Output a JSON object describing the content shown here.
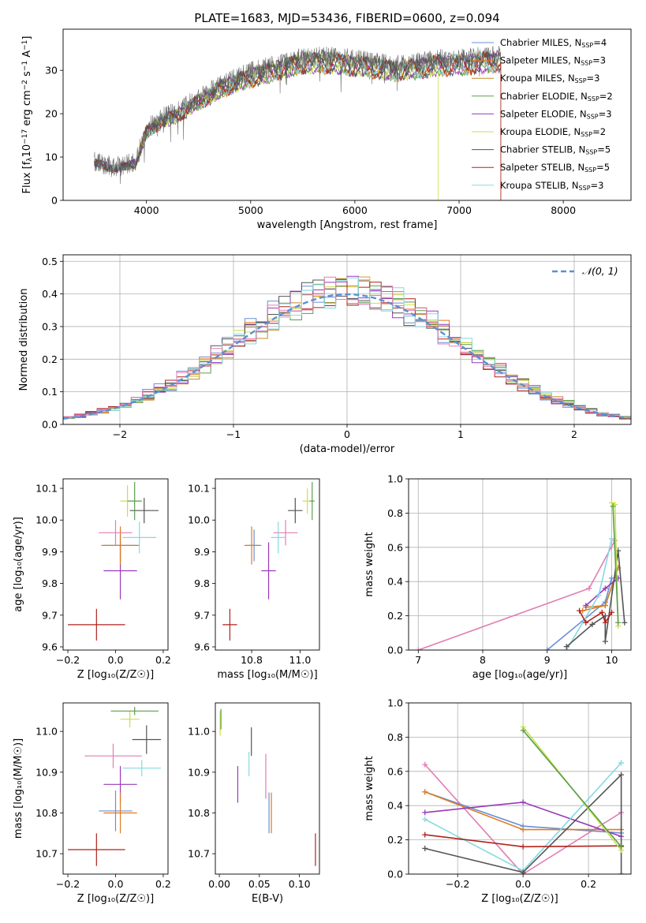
{
  "figure_title": "PLATE=1683, MJD=53436, FIBERID=0600, z=0.094",
  "colors": {
    "Chabrier MILES": "#6a8fd6",
    "Salpeter MILES": "#e07a1f",
    "Kroupa MILES": "#c8872a",
    "Chabrier ELODIE": "#5a9e4c",
    "Salpeter ELODIE": "#9a38b8",
    "Kroupa ELODIE": "#c9e14a",
    "Chabrier STELIB": "#545454",
    "Salpeter STELIB": "#b0221b",
    "Kroupa STELIB": "#84d9e3",
    "pink": "#e27db4",
    "gaussian": "#5b8fd6"
  },
  "chart_data": [
    {
      "id": "spectrum",
      "type": "line",
      "xlabel": "wavelength [Angstrom, rest frame]",
      "ylabel": "Flux [f$_\\lambda$10$^{-17}$ erg cm$^{-2}$ s$^{-1}$ A$^{-1}$]",
      "ylabel_parts": [
        "Flux [f",
        "λ",
        "10",
        "−17",
        " erg cm",
        "−2",
        " s",
        "−1",
        " A",
        "−1",
        "]"
      ],
      "xlim": [
        3200,
        8650
      ],
      "ylim": [
        0,
        39.5
      ],
      "xticks": [
        4000,
        5000,
        6000,
        7000,
        8000
      ],
      "yticks": [
        0,
        10,
        20,
        30
      ],
      "continuum": [
        [
          3500,
          9
        ],
        [
          3700,
          7.5
        ],
        [
          3900,
          9
        ],
        [
          4000,
          16.5
        ],
        [
          4150,
          19
        ],
        [
          4300,
          20.5
        ],
        [
          4500,
          23.5
        ],
        [
          4700,
          26.5
        ],
        [
          5000,
          29.5
        ],
        [
          5300,
          31.5
        ],
        [
          5500,
          33
        ],
        [
          5800,
          33
        ],
        [
          6100,
          32
        ],
        [
          6400,
          31
        ],
        [
          6700,
          32
        ],
        [
          6800,
          32.5
        ],
        [
          7000,
          32.5
        ],
        [
          7200,
          33
        ],
        [
          7400,
          33.5
        ]
      ],
      "legend": [
        {
          "label": "Chabrier MILES, N",
          "sub": "SSP",
          "tail": "=4"
        },
        {
          "label": "Salpeter MILES, N",
          "sub": "SSP",
          "tail": "=3"
        },
        {
          "label": "Kroupa MILES, N",
          "sub": "SSP",
          "tail": "=3"
        },
        {
          "label": "Chabrier ELODIE, N",
          "sub": "SSP",
          "tail": "=2"
        },
        {
          "label": "Salpeter ELODIE, N",
          "sub": "SSP",
          "tail": "=3"
        },
        {
          "label": "Kroupa ELODIE, N",
          "sub": "SSP",
          "tail": "=2"
        },
        {
          "label": "Chabrier STELIB, N",
          "sub": "SSP",
          "tail": "=5"
        },
        {
          "label": "Salpeter STELIB, N",
          "sub": "SSP",
          "tail": "=5"
        },
        {
          "label": "Kroupa STELIB, N",
          "sub": "SSP",
          "tail": "=3"
        }
      ],
      "legend_placement": "upper right"
    },
    {
      "id": "residuals",
      "type": "histogram",
      "xlabel": "(data-model)/error",
      "ylabel": "Normed distribution",
      "xlim": [
        -2.5,
        2.5
      ],
      "ylim": [
        0,
        0.52
      ],
      "xticks": [
        -2,
        -1,
        0,
        1,
        2
      ],
      "yticks": [
        0.0,
        0.1,
        0.2,
        0.3,
        0.4,
        0.5
      ],
      "legend": "𝒩(0, 1)",
      "legend_placement": "upper right",
      "grid": true,
      "bin_width": 0.1,
      "gaussian": {
        "mu": 0,
        "sigma": 1
      }
    },
    {
      "id": "age_vs_Z",
      "type": "errorbar",
      "xlabel": "Z [log10(Z/Z☉)]",
      "ylabel": "age  [log10(age/yr)]",
      "xlim": [
        -0.22,
        0.22
      ],
      "ylim": [
        9.59,
        10.13
      ],
      "xticks": [
        -0.2,
        0.0,
        0.2
      ],
      "yticks": [
        9.6,
        9.7,
        9.8,
        9.9,
        10.0,
        10.1
      ],
      "points": [
        {
          "series": "Salpeter STELIB",
          "x": -0.08,
          "y": 9.67,
          "xerr": 0.12,
          "yerr": 0.05
        },
        {
          "series": "Salpeter ELODIE",
          "x": 0.02,
          "y": 9.84,
          "xerr": 0.07,
          "yerr": 0.09
        },
        {
          "series": "Chabrier MILES",
          "x": 0.02,
          "y": 9.92,
          "xerr": 0.07,
          "yerr": 0.05
        },
        {
          "series": "Salpeter MILES",
          "x": 0.02,
          "y": 9.92,
          "xerr": 0.08,
          "yerr": 0.06
        },
        {
          "series": "pink",
          "x": 0.0,
          "y": 9.96,
          "xerr": 0.07,
          "yerr": 0.04
        },
        {
          "series": "Kroupa STELIB",
          "x": 0.1,
          "y": 9.945,
          "xerr": 0.07,
          "yerr": 0.05
        },
        {
          "series": "Chabrier STELIB",
          "x": 0.12,
          "y": 10.03,
          "xerr": 0.06,
          "yerr": 0.04
        },
        {
          "series": "Kroupa ELODIE",
          "x": 0.05,
          "y": 10.06,
          "xerr": 0.03,
          "yerr": 0.05
        },
        {
          "series": "Chabrier ELODIE",
          "x": 0.08,
          "y": 10.06,
          "xerr": 0.03,
          "yerr": 0.06
        }
      ]
    },
    {
      "id": "age_vs_mass",
      "type": "errorbar",
      "xlabel": "mass [log10(M/M☉)]",
      "ylabel": "",
      "xlim": [
        10.65,
        11.08
      ],
      "ylim": [
        9.59,
        10.13
      ],
      "xticks": [
        10.8,
        11.0
      ],
      "yticks": [
        9.6,
        9.7,
        9.8,
        9.9,
        10.0,
        10.1
      ],
      "points": [
        {
          "series": "Salpeter STELIB",
          "x": 10.71,
          "y": 9.67,
          "xerr": 0.03,
          "yerr": 0.05
        },
        {
          "series": "Salpeter ELODIE",
          "x": 10.87,
          "y": 9.84,
          "xerr": 0.03,
          "yerr": 0.09
        },
        {
          "series": "Chabrier MILES",
          "x": 10.81,
          "y": 9.92,
          "xerr": 0.03,
          "yerr": 0.05
        },
        {
          "series": "Salpeter MILES",
          "x": 10.8,
          "y": 9.92,
          "xerr": 0.03,
          "yerr": 0.06
        },
        {
          "series": "pink",
          "x": 10.94,
          "y": 9.96,
          "xerr": 0.05,
          "yerr": 0.04
        },
        {
          "series": "Kroupa STELIB",
          "x": 10.91,
          "y": 9.945,
          "xerr": 0.03,
          "yerr": 0.05
        },
        {
          "series": "Chabrier STELIB",
          "x": 10.98,
          "y": 10.03,
          "xerr": 0.03,
          "yerr": 0.04
        },
        {
          "series": "Kroupa ELODIE",
          "x": 11.03,
          "y": 10.06,
          "xerr": 0.02,
          "yerr": 0.04
        },
        {
          "series": "Chabrier ELODIE",
          "x": 11.05,
          "y": 10.06,
          "xerr": 0.01,
          "yerr": 0.06
        }
      ]
    },
    {
      "id": "weight_vs_age",
      "type": "line",
      "xlabel": "age  [log10(age/yr)]",
      "ylabel": "mass weight",
      "xlim": [
        6.85,
        10.3
      ],
      "ylim": [
        0,
        1
      ],
      "xticks": [
        7,
        8,
        9,
        10
      ],
      "yticks": [
        0.0,
        0.2,
        0.4,
        0.6,
        0.8,
        1.0
      ],
      "grid": true,
      "series": [
        {
          "name": "pink",
          "x": [
            7.0,
            9.65,
            10.05
          ],
          "y": [
            0.0,
            0.36,
            0.64
          ]
        },
        {
          "name": "Chabrier MILES",
          "x": [
            9.0,
            9.9,
            10.0
          ],
          "y": [
            0.0,
            0.28,
            0.42
          ]
        },
        {
          "name": "Salpeter MILES",
          "x": [
            9.55,
            9.9,
            10.1
          ],
          "y": [
            0.23,
            0.26,
            0.48
          ]
        },
        {
          "name": "Kroupa MILES",
          "x": [
            9.6,
            9.9,
            10.1
          ],
          "y": [
            0.25,
            0.26,
            0.48
          ]
        },
        {
          "name": "Salpeter ELODIE",
          "x": [
            9.6,
            9.9,
            10.1
          ],
          "y": [
            0.26,
            0.36,
            0.42
          ]
        },
        {
          "name": "Kroupa STELIB",
          "x": [
            9.3,
            9.8,
            10.0
          ],
          "y": [
            0.0,
            0.32,
            0.65
          ]
        },
        {
          "name": "Chabrier STELIB",
          "x": [
            9.3,
            9.7,
            9.9,
            9.9,
            10.1,
            10.2
          ],
          "y": [
            0.02,
            0.15,
            0.2,
            0.05,
            0.58,
            0.16
          ]
        },
        {
          "name": "Salpeter STELIB",
          "x": [
            9.5,
            9.6,
            9.85,
            9.9,
            10.0
          ],
          "y": [
            0.23,
            0.16,
            0.22,
            0.16,
            0.22
          ]
        },
        {
          "name": "Kroupa ELODIE",
          "x": [
            10.0,
            10.05,
            10.1
          ],
          "y": [
            0.86,
            0.85,
            0.14
          ]
        },
        {
          "name": "Chabrier ELODIE",
          "x": [
            10.02,
            10.1
          ],
          "y": [
            0.84,
            0.16
          ]
        }
      ]
    },
    {
      "id": "mass_vs_Z",
      "type": "errorbar",
      "xlabel": "Z [log10(Z/Z☉)]",
      "ylabel": "mass [log10(M/M☉)]",
      "xlim": [
        -0.22,
        0.22
      ],
      "ylim": [
        10.65,
        11.07
      ],
      "xticks": [
        -0.2,
        0.0,
        0.2
      ],
      "yticks": [
        10.7,
        10.8,
        10.9,
        11.0
      ],
      "points": [
        {
          "series": "Salpeter STELIB",
          "x": -0.08,
          "y": 10.71,
          "xerr": 0.12,
          "yerr": 0.04
        },
        {
          "series": "Salpeter ELODIE",
          "x": 0.02,
          "y": 10.87,
          "xerr": 0.07,
          "yerr": 0.045
        },
        {
          "series": "Chabrier MILES",
          "x": 0.0,
          "y": 10.805,
          "xerr": 0.07,
          "yerr": 0.05
        },
        {
          "series": "Salpeter MILES",
          "x": 0.02,
          "y": 10.8,
          "xerr": 0.07,
          "yerr": 0.05
        },
        {
          "series": "pink",
          "x": -0.01,
          "y": 10.94,
          "xerr": 0.12,
          "yerr": 0.03
        },
        {
          "series": "Kroupa STELIB",
          "x": 0.11,
          "y": 10.91,
          "xerr": 0.08,
          "yerr": 0.02
        },
        {
          "series": "Chabrier STELIB",
          "x": 0.13,
          "y": 10.98,
          "xerr": 0.06,
          "yerr": 0.035
        },
        {
          "series": "Kroupa ELODIE",
          "x": 0.06,
          "y": 11.03,
          "xerr": 0.04,
          "yerr": 0.02
        },
        {
          "series": "Chabrier ELODIE",
          "x": 0.08,
          "y": 11.05,
          "xerr": 0.1,
          "yerr": 0.01
        }
      ]
    },
    {
      "id": "mass_vs_ebv",
      "type": "errorbar",
      "xlabel": "E(B-V)",
      "ylabel": "",
      "xlim": [
        -0.005,
        0.125
      ],
      "ylim": [
        10.65,
        11.07
      ],
      "xticks": [
        0.0,
        0.05,
        0.1
      ],
      "yticks": [
        10.7,
        10.8,
        10.9,
        11.0
      ],
      "points": [
        {
          "series": "Salpeter STELIB",
          "x": 0.12,
          "y": 10.71,
          "xerr": 0,
          "yerr": 0.04
        },
        {
          "series": "Salpeter ELODIE",
          "x": 0.023,
          "y": 10.87,
          "xerr": 0,
          "yerr": 0.045
        },
        {
          "series": "Chabrier MILES",
          "x": 0.062,
          "y": 10.8,
          "xerr": 0,
          "yerr": 0.05
        },
        {
          "series": "Salpeter MILES",
          "x": 0.065,
          "y": 10.8,
          "xerr": 0,
          "yerr": 0.05
        },
        {
          "series": "pink",
          "x": 0.058,
          "y": 10.89,
          "xerr": 0,
          "yerr": 0.055
        },
        {
          "series": "Kroupa STELIB",
          "x": 0.037,
          "y": 10.92,
          "xerr": 0,
          "yerr": 0.03
        },
        {
          "series": "Chabrier STELIB",
          "x": 0.04,
          "y": 10.975,
          "xerr": 0,
          "yerr": 0.035
        },
        {
          "series": "Kroupa ELODIE",
          "x": 0.001,
          "y": 11.02,
          "xerr": 0,
          "yerr": 0.03
        },
        {
          "series": "Chabrier ELODIE",
          "x": 0.002,
          "y": 11.03,
          "xerr": 0,
          "yerr": 0.025
        }
      ]
    },
    {
      "id": "weight_vs_Z",
      "type": "line",
      "xlabel": "Z [log10(Z/Z☉)]",
      "ylabel": "mass weight",
      "xlim": [
        -0.35,
        0.33
      ],
      "ylim": [
        0,
        1
      ],
      "xticks": [
        -0.2,
        0.0,
        0.2
      ],
      "yticks": [
        0.0,
        0.2,
        0.4,
        0.6,
        0.8,
        1.0
      ],
      "grid": true,
      "series": [
        {
          "name": "pink",
          "x": [
            -0.3,
            0.0,
            0.3
          ],
          "y": [
            0.64,
            0.0,
            0.36
          ]
        },
        {
          "name": "Chabrier MILES",
          "x": [
            -0.3,
            0.0,
            0.3
          ],
          "y": [
            0.48,
            0.28,
            0.24
          ]
        },
        {
          "name": "Salpeter MILES",
          "x": [
            -0.3,
            0.0,
            0.3
          ],
          "y": [
            0.48,
            0.26,
            0.26
          ]
        },
        {
          "name": "Salpeter ELODIE",
          "x": [
            -0.3,
            0.0,
            0.3
          ],
          "y": [
            0.36,
            0.42,
            0.22
          ]
        },
        {
          "name": "Kroupa STELIB",
          "x": [
            -0.3,
            0.0,
            0.3
          ],
          "y": [
            0.32,
            0.02,
            0.65
          ]
        },
        {
          "name": "Chabrier STELIB",
          "x": [
            -0.3,
            0.0,
            0.3,
            0.3
          ],
          "y": [
            0.15,
            0.01,
            0.58,
            0.0
          ]
        },
        {
          "name": "Salpeter STELIB",
          "x": [
            -0.3,
            0.0,
            0.3
          ],
          "y": [
            0.23,
            0.16,
            0.165
          ]
        },
        {
          "name": "Kroupa ELODIE",
          "x": [
            0.0,
            0.3
          ],
          "y": [
            0.86,
            0.14
          ]
        },
        {
          "name": "Chabrier ELODIE",
          "x": [
            0.0,
            0.3
          ],
          "y": [
            0.84,
            0.16
          ]
        }
      ]
    }
  ]
}
